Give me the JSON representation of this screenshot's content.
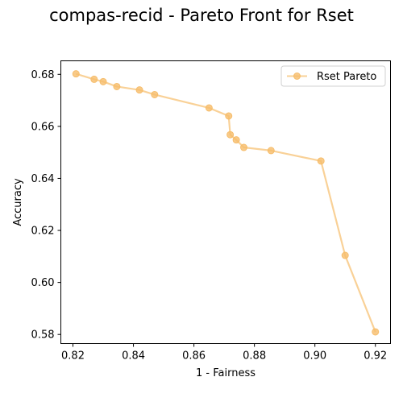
{
  "chart_data": {
    "type": "line",
    "title": "compas-recid - Pareto Front for Rset",
    "xlabel": "1 - Fairness",
    "ylabel": "Accuracy",
    "xlim": [
      0.816,
      0.925
    ],
    "ylim": [
      0.5765,
      0.6852
    ],
    "xticks": [
      0.82,
      0.84,
      0.86,
      0.88,
      0.9,
      0.92
    ],
    "xtick_labels": [
      "0.82",
      "0.84",
      "0.86",
      "0.88",
      "0.90",
      "0.92"
    ],
    "yticks": [
      0.58,
      0.6,
      0.62,
      0.64,
      0.66,
      0.68
    ],
    "ytick_labels": [
      "0.58",
      "0.60",
      "0.62",
      "0.64",
      "0.66",
      "0.68"
    ],
    "grid": false,
    "legend_position": "top-right",
    "series": [
      {
        "name": "Rset Pareto",
        "color": "#f6bd6b",
        "marker": "circle",
        "x": [
          0.821,
          0.827,
          0.83,
          0.8345,
          0.842,
          0.847,
          0.865,
          0.8715,
          0.872,
          0.874,
          0.8765,
          0.8855,
          0.902,
          0.91,
          0.92
        ],
        "y": [
          0.6802,
          0.6781,
          0.6772,
          0.6753,
          0.674,
          0.6722,
          0.6671,
          0.664,
          0.6568,
          0.6548,
          0.6519,
          0.6507,
          0.6467,
          0.6104,
          0.581
        ]
      }
    ]
  }
}
